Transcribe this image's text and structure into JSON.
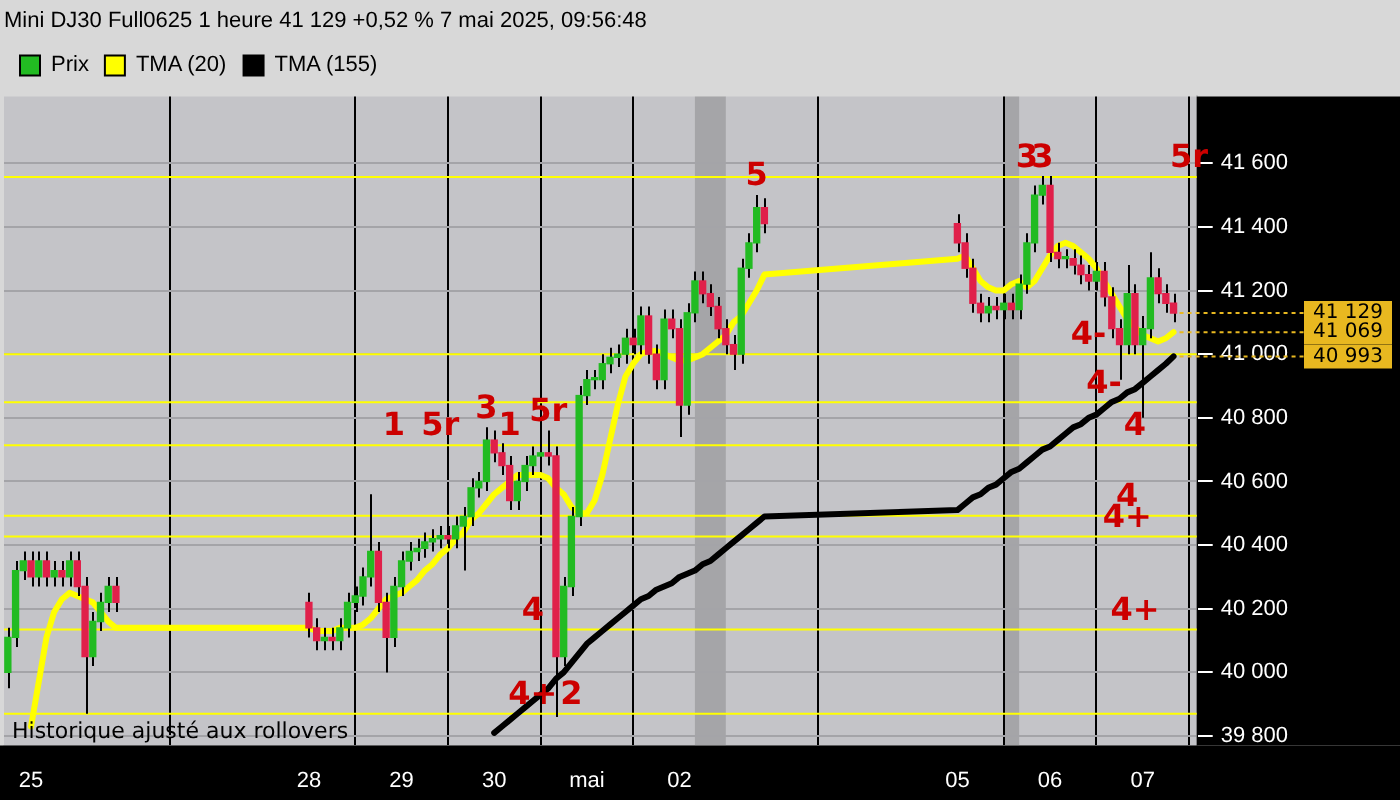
{
  "chart_data": {
    "type": "candlestick",
    "title": "Mini DJ30 Full0625 1 heure 41 129 +0,52 % 7 mai 2025, 09:56:48",
    "x": [
      "2025-04-24T18:00",
      "2025-04-24T20:00",
      "2025-04-24T22:00",
      "2025-04-25T00:00",
      "2025-04-25T02:00",
      "2025-04-25T04:00",
      "2025-04-25T06:00",
      "2025-04-25T08:00",
      "2025-04-25T10:00",
      "2025-04-25T12:00",
      "2025-04-25T14:00",
      "2025-04-25T16:00",
      "2025-04-25T18:00",
      "2025-04-25T20:00",
      "2025-04-25T22:00",
      "2025-04-28T00:00",
      "2025-04-28T02:00",
      "2025-04-28T04:00",
      "2025-04-28T06:00",
      "2025-04-28T08:00",
      "2025-04-28T10:00",
      "2025-04-28T12:00",
      "2025-04-28T14:00",
      "2025-04-28T16:00",
      "2025-04-28T18:00",
      "2025-04-28T20:00",
      "2025-04-28T22:00",
      "2025-04-29T00:00",
      "2025-04-29T02:00",
      "2025-04-29T04:00",
      "2025-04-29T06:00",
      "2025-04-29T08:00",
      "2025-04-29T10:00",
      "2025-04-29T12:00",
      "2025-04-29T14:00",
      "2025-04-29T16:00",
      "2025-04-29T18:00",
      "2025-04-29T20:00",
      "2025-04-29T22:00",
      "2025-04-30T00:00",
      "2025-04-30T02:00",
      "2025-04-30T04:00",
      "2025-04-30T06:00",
      "2025-04-30T08:00",
      "2025-04-30T10:00",
      "2025-04-30T12:00",
      "2025-04-30T14:00",
      "2025-04-30T16:00",
      "2025-04-30T18:00",
      "2025-04-30T20:00",
      "2025-04-30T22:00",
      "2025-05-01T00:00",
      "2025-05-01T02:00",
      "2025-05-01T04:00",
      "2025-05-01T06:00",
      "2025-05-01T08:00",
      "2025-05-01T10:00",
      "2025-05-01T12:00",
      "2025-05-01T14:00",
      "2025-05-01T16:00",
      "2025-05-01T18:00",
      "2025-05-01T20:00",
      "2025-05-01T22:00",
      "2025-05-02T00:00",
      "2025-05-02T02:00",
      "2025-05-02T04:00",
      "2025-05-02T06:00",
      "2025-05-02T08:00",
      "2025-05-02T10:00",
      "2025-05-02T12:00",
      "2025-05-02T14:00",
      "2025-05-02T16:00",
      "2025-05-02T18:00",
      "2025-05-02T20:00",
      "2025-05-02T22:00",
      "2025-05-05T00:00",
      "2025-05-05T02:00",
      "2025-05-05T04:00",
      "2025-05-05T06:00",
      "2025-05-05T08:00",
      "2025-05-05T10:00",
      "2025-05-05T12:00",
      "2025-05-05T14:00",
      "2025-05-05T16:00",
      "2025-05-05T18:00",
      "2025-05-05T20:00",
      "2025-05-05T22:00",
      "2025-05-06T00:00",
      "2025-05-06T02:00",
      "2025-05-06T04:00",
      "2025-05-06T06:00",
      "2025-05-06T08:00",
      "2025-05-06T10:00",
      "2025-05-06T12:00",
      "2025-05-06T14:00",
      "2025-05-06T16:00",
      "2025-05-06T18:00",
      "2025-05-06T20:00",
      "2025-05-06T22:00",
      "2025-05-07T00:00",
      "2025-05-07T02:00",
      "2025-05-07T04:00",
      "2025-05-07T06:00",
      "2025-05-07T08:00"
    ],
    "series": [
      {
        "name": "Prix",
        "colors": [
          "#22bb22",
          "#22bb22",
          "#22bb22",
          "#e0204a",
          "#22bb22",
          "#e0204a",
          "#22bb22",
          "#e0204a",
          "#22bb22",
          "#e0204a",
          "#e0204a",
          "#22bb22",
          "#22bb22",
          "#22bb22",
          "#e0204a",
          "#e0204a",
          "#e0204a",
          "#22bb22",
          "#e0204a",
          "#22bb22",
          "#22bb22",
          "#22bb22",
          "#22bb22",
          "#22bb22",
          "#e0204a",
          "#e0204a",
          "#22bb22",
          "#22bb22",
          "#22bb22",
          "#22bb22",
          "#22bb22",
          "#22bb22",
          "#22bb22",
          "#e0204a",
          "#22bb22",
          "#22bb22",
          "#22bb22",
          "#22bb22",
          "#22bb22",
          "#e0204a",
          "#e0204a",
          "#e0204a",
          "#22bb22",
          "#22bb22",
          "#22bb22",
          "#22bb22",
          "#e0204a",
          "#e0204a",
          "#22bb22",
          "#22bb22",
          "#22bb22",
          "#22bb22",
          "#22bb22",
          "#22bb22",
          "#22bb22",
          "#22bb22",
          "#22bb22",
          "#e0204a",
          "#22bb22",
          "#e0204a",
          "#e0204a",
          "#22bb22",
          "#e0204a",
          "#e0204a",
          "#22bb22",
          "#22bb22",
          "#e0204a",
          "#e0204a",
          "#e0204a",
          "#e0204a",
          "#e0204a",
          "#22bb22",
          "#22bb22",
          "#22bb22",
          "#e0204a",
          "#e0204a",
          "#e0204a",
          "#e0204a",
          "#e0204a",
          "#22bb22",
          "#e0204a",
          "#22bb22",
          "#e0204a",
          "#22bb22",
          "#22bb22",
          "#22bb22",
          "#22bb22",
          "#e0204a",
          "#e0204a",
          "#22bb22",
          "#e0204a",
          "#e0204a",
          "#e0204a",
          "#22bb22",
          "#e0204a",
          "#e0204a",
          "#e0204a",
          "#22bb22",
          "#e0204a",
          "#22bb22",
          "#22bb22",
          "#e0204a",
          "#e0204a",
          "#e0204a"
        ],
        "ohlc": [
          [
            40000,
            40140,
            39950,
            40110
          ],
          [
            40110,
            40350,
            40080,
            40320
          ],
          [
            40320,
            40380,
            40290,
            40350
          ],
          [
            40350,
            40380,
            40270,
            40300
          ],
          [
            40300,
            40380,
            40270,
            40350
          ],
          [
            40350,
            40380,
            40270,
            40300
          ],
          [
            40300,
            40350,
            40270,
            40320
          ],
          [
            40320,
            40350,
            40270,
            40300
          ],
          [
            40300,
            40380,
            40270,
            40350
          ],
          [
            40350,
            40380,
            40240,
            40270
          ],
          [
            40270,
            40300,
            39870,
            40050
          ],
          [
            40050,
            40190,
            40020,
            40160
          ],
          [
            40160,
            40250,
            40130,
            40220
          ],
          [
            40220,
            40300,
            40190,
            40270
          ],
          [
            40270,
            40300,
            40190,
            40220
          ],
          [
            40220,
            40250,
            40110,
            40140
          ],
          [
            40140,
            40170,
            40070,
            40100
          ],
          [
            40100,
            40140,
            40070,
            40110
          ],
          [
            40110,
            40140,
            40070,
            40100
          ],
          [
            40100,
            40170,
            40070,
            40140
          ],
          [
            40140,
            40250,
            40110,
            40220
          ],
          [
            40220,
            40270,
            40190,
            40240
          ],
          [
            40240,
            40330,
            40210,
            40300
          ],
          [
            40300,
            40560,
            40270,
            40380
          ],
          [
            40380,
            40410,
            40190,
            40220
          ],
          [
            40220,
            40250,
            40000,
            40110
          ],
          [
            40110,
            40300,
            40080,
            40270
          ],
          [
            40270,
            40380,
            40240,
            40350
          ],
          [
            40350,
            40410,
            40320,
            40380
          ],
          [
            40380,
            40420,
            40350,
            40390
          ],
          [
            40390,
            40440,
            40360,
            40410
          ],
          [
            40410,
            40450,
            40380,
            40420
          ],
          [
            40420,
            40460,
            40390,
            40430
          ],
          [
            40430,
            40460,
            40390,
            40420
          ],
          [
            40420,
            40490,
            40390,
            40460
          ],
          [
            40460,
            40520,
            40320,
            40490
          ],
          [
            40490,
            40610,
            40460,
            40580
          ],
          [
            40580,
            40630,
            40550,
            40600
          ],
          [
            40600,
            40770,
            40570,
            40730
          ],
          [
            40730,
            40760,
            40660,
            40690
          ],
          [
            40690,
            40720,
            40620,
            40650
          ],
          [
            40650,
            40680,
            40510,
            40540
          ],
          [
            40540,
            40630,
            40510,
            40600
          ],
          [
            40600,
            40680,
            40570,
            40650
          ],
          [
            40650,
            40710,
            40620,
            40680
          ],
          [
            40680,
            40720,
            40650,
            40690
          ],
          [
            40690,
            40760,
            40650,
            40680
          ],
          [
            40680,
            40710,
            39860,
            40050
          ],
          [
            40050,
            40300,
            40020,
            40270
          ],
          [
            40270,
            40520,
            40240,
            40490
          ],
          [
            40490,
            40900,
            40460,
            40870
          ],
          [
            40870,
            40950,
            40840,
            40920
          ],
          [
            40920,
            40950,
            40890,
            40920
          ],
          [
            40920,
            41000,
            40890,
            40970
          ],
          [
            40970,
            41020,
            40940,
            40990
          ],
          [
            40990,
            41030,
            40960,
            41000
          ],
          [
            41000,
            41080,
            40970,
            41050
          ],
          [
            41050,
            41080,
            41000,
            41030
          ],
          [
            41030,
            41150,
            41000,
            41120
          ],
          [
            41120,
            41150,
            40970,
            41000
          ],
          [
            41000,
            41030,
            40890,
            40920
          ],
          [
            40920,
            41140,
            40890,
            41110
          ],
          [
            41110,
            41140,
            41050,
            41080
          ],
          [
            41080,
            41110,
            40740,
            40840
          ],
          [
            40840,
            41160,
            40810,
            41130
          ],
          [
            41130,
            41260,
            41100,
            41230
          ],
          [
            41230,
            41260,
            41160,
            41190
          ],
          [
            41190,
            41220,
            41120,
            41150
          ],
          [
            41150,
            41180,
            41050,
            41080
          ],
          [
            41080,
            41110,
            41000,
            41030
          ],
          [
            41030,
            41060,
            40950,
            41000
          ],
          [
            41000,
            41300,
            40970,
            41270
          ],
          [
            41270,
            41380,
            41240,
            41350
          ],
          [
            41350,
            41500,
            41320,
            41460
          ],
          [
            41460,
            41490,
            41380,
            41410
          ],
          [
            41410,
            41440,
            41320,
            41350
          ],
          [
            41350,
            41380,
            41240,
            41270
          ],
          [
            41270,
            41300,
            41130,
            41160
          ],
          [
            41160,
            41190,
            41100,
            41130
          ],
          [
            41130,
            41180,
            41100,
            41150
          ],
          [
            41150,
            41180,
            41110,
            41140
          ],
          [
            41140,
            41190,
            41110,
            41160
          ],
          [
            41160,
            41190,
            41110,
            41140
          ],
          [
            41140,
            41250,
            41110,
            41220
          ],
          [
            41220,
            41380,
            41190,
            41350
          ],
          [
            41350,
            41530,
            41320,
            41500
          ],
          [
            41500,
            41560,
            41470,
            41530
          ],
          [
            41530,
            41560,
            41290,
            41320
          ],
          [
            41320,
            41350,
            41270,
            41300
          ],
          [
            41300,
            41330,
            41270,
            41300
          ],
          [
            41300,
            41330,
            41250,
            41280
          ],
          [
            41280,
            41310,
            41220,
            41250
          ],
          [
            41250,
            41280,
            41200,
            41230
          ],
          [
            41230,
            41290,
            41200,
            41260
          ],
          [
            41260,
            41290,
            41150,
            41180
          ],
          [
            41180,
            41210,
            41050,
            41080
          ],
          [
            41080,
            41110,
            40920,
            41030
          ],
          [
            41030,
            41280,
            41000,
            41190
          ],
          [
            41190,
            41220,
            41000,
            41030
          ],
          [
            41030,
            41120,
            40800,
            41080
          ],
          [
            41080,
            41320,
            41050,
            41240
          ],
          [
            41240,
            41270,
            41160,
            41190
          ],
          [
            41190,
            41220,
            41130,
            41160
          ],
          [
            41160,
            41190,
            41100,
            41129
          ]
        ]
      },
      {
        "name": "TMA (20)",
        "type": "line",
        "color": "#ffff00",
        "values": [
          null,
          null,
          null,
          39830,
          39970,
          40110,
          40190,
          40230,
          40250,
          40240,
          40230,
          40220,
          40190,
          40160,
          40140,
          40140,
          40130,
          40130,
          40130,
          40140,
          40140,
          40140,
          40150,
          40170,
          40200,
          40230,
          40240,
          40250,
          40270,
          40290,
          40320,
          40340,
          40370,
          40390,
          40420,
          40440,
          40480,
          40500,
          40530,
          40560,
          40580,
          40600,
          40620,
          40620,
          40620,
          40620,
          40610,
          40580,
          40560,
          40520,
          40500,
          40500,
          40540,
          40620,
          40730,
          40840,
          40930,
          40970,
          41000,
          41010,
          41010,
          41000,
          40990,
          40980,
          40980,
          40990,
          41000,
          41020,
          41040,
          41060,
          41100,
          41120,
          41160,
          41200,
          41250,
          41300,
          41310,
          41270,
          41230,
          41210,
          41200,
          41200,
          41220,
          41230,
          41210,
          41230,
          41270,
          41310,
          41340,
          41350,
          41340,
          41320,
          41300,
          41270,
          41230,
          41190,
          41150,
          41110,
          null,
          41060,
          41050,
          41040,
          41050,
          41069
        ]
      },
      {
        "name": "TMA (155)",
        "type": "line",
        "color": "#000000",
        "values": [
          null,
          null,
          null,
          null,
          null,
          null,
          null,
          null,
          null,
          null,
          null,
          null,
          null,
          null,
          null,
          null,
          null,
          null,
          null,
          null,
          null,
          null,
          null,
          null,
          null,
          null,
          null,
          null,
          null,
          null,
          null,
          null,
          null,
          null,
          null,
          null,
          null,
          null,
          null,
          39810,
          39830,
          39850,
          39870,
          39890,
          39910,
          39930,
          39950,
          39980,
          40000,
          40030,
          40060,
          40090,
          40110,
          40130,
          40150,
          40170,
          40190,
          40210,
          40230,
          40240,
          40260,
          40270,
          40280,
          40300,
          40310,
          40320,
          40340,
          40350,
          40370,
          40390,
          40410,
          40430,
          40450,
          40470,
          40490,
          40510,
          40530,
          40550,
          40560,
          40580,
          40590,
          40610,
          40630,
          40640,
          40660,
          40680,
          40700,
          40710,
          40730,
          40750,
          40770,
          40780,
          40800,
          40810,
          40830,
          40850,
          40860,
          40880,
          40890,
          40910,
          40930,
          40950,
          40970,
          40993
        ]
      }
    ],
    "ylim": [
      39770,
      41810
    ],
    "xlim": [
      "2025-04-24T17:00",
      "2025-05-07T14:00"
    ],
    "yticks": [
      {
        "value": 39800,
        "label": "39 800"
      },
      {
        "value": 40000,
        "label": "40 000"
      },
      {
        "value": 40200,
        "label": "40 200"
      },
      {
        "value": 40400,
        "label": "40 400"
      },
      {
        "value": 40600,
        "label": "40 600"
      },
      {
        "value": 40800,
        "label": "40 800"
      },
      {
        "value": 41000,
        "label": "41 000"
      },
      {
        "value": 41200,
        "label": "41 200"
      },
      {
        "value": 41400,
        "label": "41 400"
      },
      {
        "value": 41600,
        "label": "41 600"
      }
    ],
    "xticks": [
      {
        "value": "2025-04-25T00:00",
        "label": "25"
      },
      {
        "value": "2025-04-28T00:00",
        "label": "28"
      },
      {
        "value": "2025-04-29T00:00",
        "label": "29"
      },
      {
        "value": "2025-04-30T00:00",
        "label": "30"
      },
      {
        "value": "2025-05-01T00:00",
        "label": "mai"
      },
      {
        "value": "2025-05-02T00:00",
        "label": "02"
      },
      {
        "value": "2025-05-05T00:00",
        "label": "05"
      },
      {
        "value": "2025-05-06T00:00",
        "label": "06"
      },
      {
        "value": "2025-05-07T00:00",
        "label": "07"
      }
    ],
    "grid": true,
    "legend": "top left",
    "ref_lines": [
      {
        "axis": "y",
        "value": 41557,
        "color": "#ffff00"
      },
      {
        "axis": "y",
        "value": 41000,
        "color": "#ffff00"
      },
      {
        "axis": "y",
        "value": 40849,
        "color": "#ffff00"
      },
      {
        "axis": "y",
        "value": 40714,
        "color": "#ffff00"
      },
      {
        "axis": "y",
        "value": 40492,
        "color": "#ffff00"
      },
      {
        "axis": "y",
        "value": 40427,
        "color": "#ffff00"
      },
      {
        "axis": "y",
        "value": 40135,
        "color": "#ffff00"
      },
      {
        "axis": "y",
        "value": 39870,
        "color": "#ffff00"
      }
    ],
    "bands": [
      {
        "axis": "x",
        "from": "2025-05-02T04:00",
        "to": "2025-05-02T12:00",
        "color": "#808080"
      },
      {
        "axis": "x",
        "from": "2025-05-05T12:00",
        "to": "2025-05-05T16:00",
        "color": "#808080"
      }
    ],
    "annotations": [
      {
        "text": "1",
        "x": "2025-04-28T22:00",
        "y": 40714
      },
      {
        "text": "5r",
        "x": "2025-04-29T10:00",
        "y": 40714
      },
      {
        "text": "3",
        "x": "2025-04-29T22:00",
        "y": 40770
      },
      {
        "text": "1",
        "x": "2025-04-30T04:00",
        "y": 40714
      },
      {
        "text": "5r",
        "x": "2025-04-30T14:00",
        "y": 40760
      },
      {
        "text": "4",
        "x": "2025-04-30T10:00",
        "y": 40135
      },
      {
        "text": "4+",
        "x": "2025-04-30T10:00",
        "y": 39870
      },
      {
        "text": "2",
        "x": "2025-04-30T20:00",
        "y": 39870
      },
      {
        "text": "5",
        "x": "2025-05-02T20:00",
        "y": 41500
      },
      {
        "text": "3",
        "x": "2025-05-05T18:00",
        "y": 41557
      },
      {
        "text": "3",
        "x": "2025-05-05T22:00",
        "y": 41557
      },
      {
        "text": "5r",
        "x": "2025-05-07T12:00",
        "y": 41557
      },
      {
        "text": "4-",
        "x": "2025-05-06T10:00",
        "y": 41000
      },
      {
        "text": "4-",
        "x": "2025-05-06T14:00",
        "y": 40849
      },
      {
        "text": "4",
        "x": "2025-05-06T22:00",
        "y": 40714
      },
      {
        "text": "4",
        "x": "2025-05-06T20:00",
        "y": 40492
      },
      {
        "text": "4+",
        "x": "2025-05-06T20:00",
        "y": 40427
      },
      {
        "text": "4+",
        "x": "2025-05-06T22:00",
        "y": 40135
      },
      {
        "text": "41 129",
        "x": "2025-05-07T08:00",
        "y": 41129
      },
      {
        "text": "41 069",
        "x": "2025-05-07T08:00",
        "y": 41069
      },
      {
        "text": "40 993",
        "x": "2025-05-07T08:00",
        "y": 40993
      },
      "Historique ajusté aux rollovers"
    ]
  }
}
